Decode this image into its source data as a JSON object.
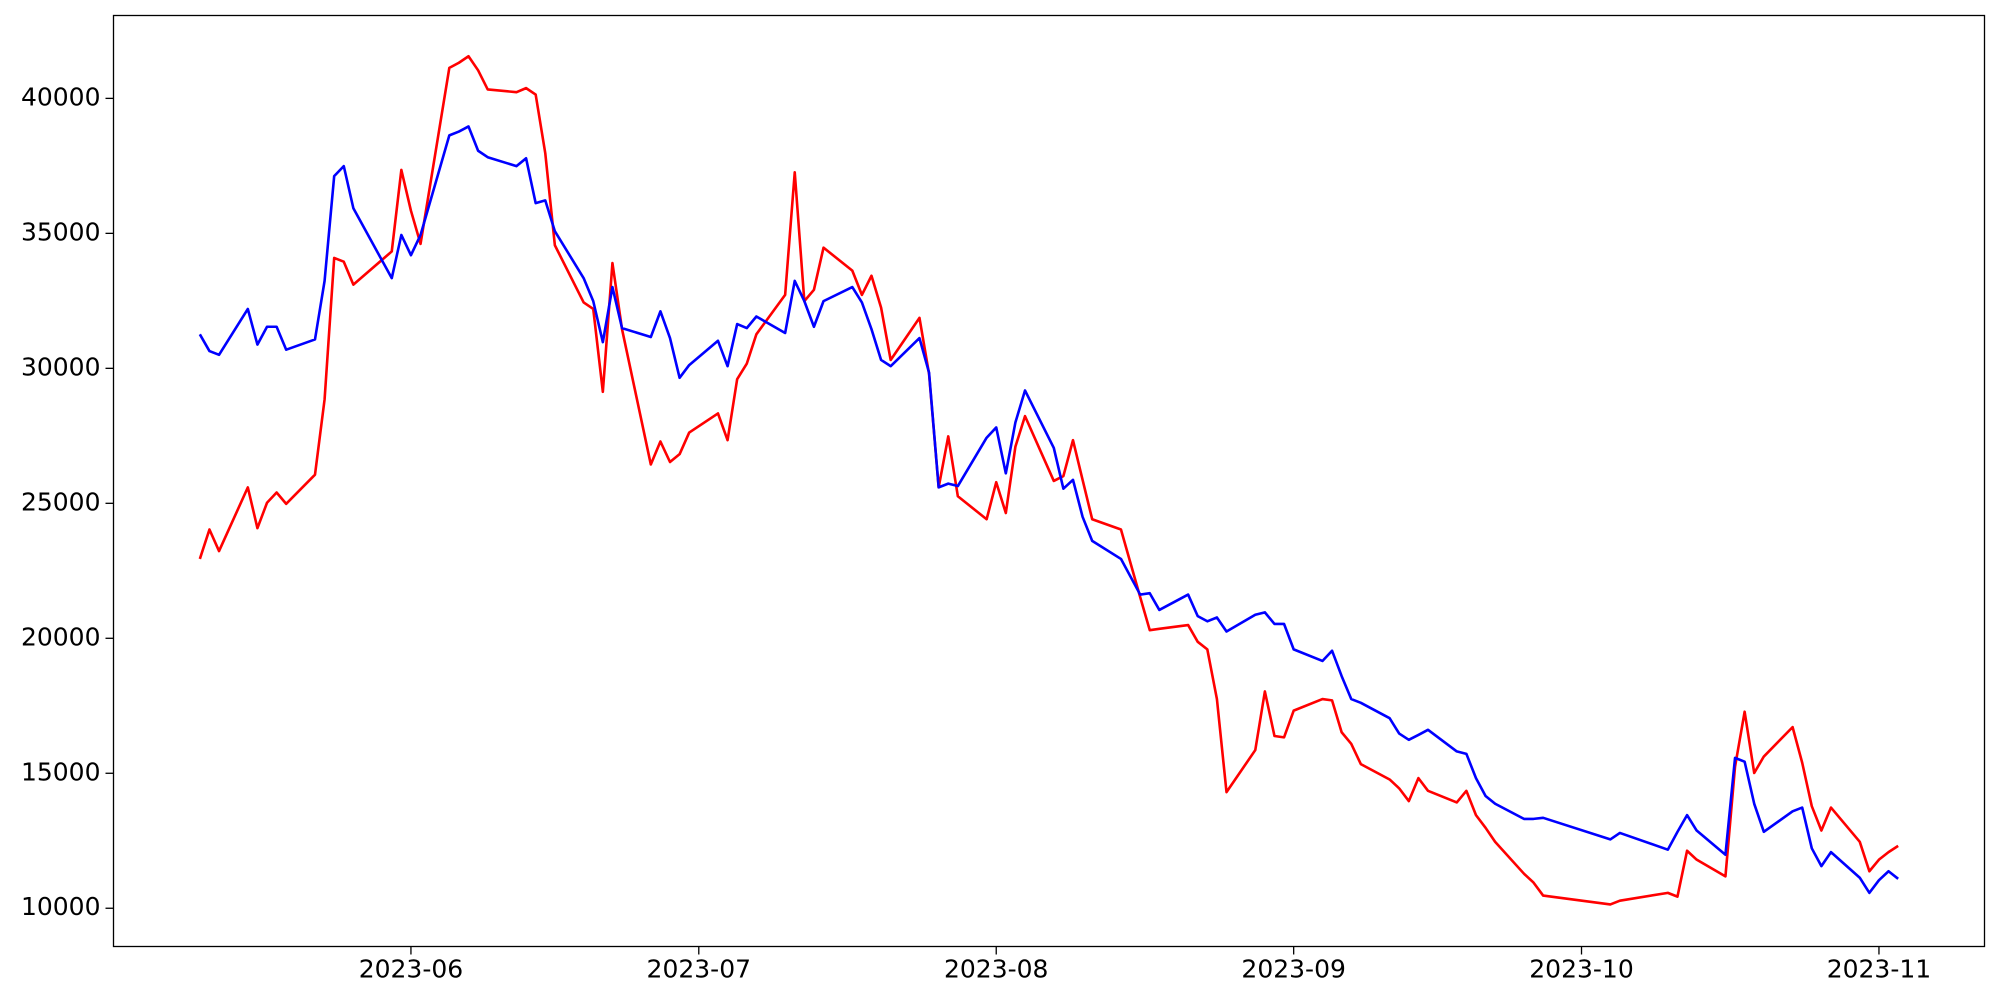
{
  "chart_data": {
    "type": "line",
    "x": [
      19487,
      19488,
      19489,
      19492,
      19493,
      19494,
      19495,
      19496,
      19499,
      19500,
      19501,
      19502,
      19503,
      19507,
      19508,
      19509,
      19510,
      19513,
      19514,
      19515,
      19516,
      19517,
      19520,
      19521,
      19522,
      19523,
      19524,
      19527,
      19528,
      19529,
      19530,
      19531,
      19534,
      19535,
      19536,
      19537,
      19538,
      19541,
      19542,
      19543,
      19544,
      19545,
      19548,
      19549,
      19550,
      19551,
      19552,
      19555,
      19556,
      19557,
      19558,
      19559,
      19562,
      19563,
      19564,
      19565,
      19566,
      19569,
      19570,
      19571,
      19572,
      19573,
      19576,
      19577,
      19578,
      19579,
      19580,
      19583,
      19585,
      19586,
      19587,
      19590,
      19591,
      19592,
      19593,
      19594,
      19597,
      19598,
      19599,
      19600,
      19601,
      19604,
      19605,
      19606,
      19607,
      19608,
      19611,
      19612,
      19613,
      19614,
      19615,
      19618,
      19619,
      19620,
      19621,
      19622,
      19625,
      19626,
      19627,
      19634,
      19635,
      19640,
      19641,
      19642,
      19643,
      19646,
      19647,
      19648,
      19649,
      19650,
      19653,
      19654,
      19655,
      19656,
      19657,
      19660,
      19661,
      19662,
      19663,
      19664
    ],
    "series": [
      {
        "color": "#ff0000",
        "values": [
          22940,
          24030,
          23230,
          25590,
          24080,
          25020,
          25400,
          24980,
          26060,
          28850,
          34090,
          33950,
          33100,
          34330,
          37350,
          35840,
          34610,
          41130,
          41320,
          41560,
          41040,
          40330,
          40230,
          40380,
          40140,
          37970,
          34560,
          32440,
          32200,
          29130,
          33900,
          31450,
          26440,
          27290,
          26530,
          26820,
          27620,
          28330,
          27340,
          29600,
          30170,
          31260,
          32720,
          37260,
          32490,
          32910,
          34470,
          33620,
          32720,
          33430,
          32250,
          30310,
          31870,
          29790,
          25590,
          27480,
          25260,
          24410,
          25780,
          24640,
          27100,
          28230,
          25830,
          26010,
          27340,
          25870,
          24410,
          24030,
          21530,
          20300,
          20350,
          20490,
          19870,
          19590,
          17750,
          14300,
          15860,
          18030,
          16380,
          16330,
          17320,
          17750,
          17700,
          16520,
          16090,
          15340,
          14770,
          14440,
          13970,
          14820,
          14350,
          13920,
          14350,
          13450,
          12980,
          12460,
          11280,
          10950,
          10470,
          10140,
          10280,
          10570,
          10430,
          12130,
          11800,
          11180,
          15240,
          17280,
          15010,
          15620,
          16710,
          15390,
          13780,
          12880,
          13730,
          12460,
          11370,
          11800,
          12080,
          12310
        ]
      },
      {
        "color": "#0000ff",
        "values": [
          31260,
          30640,
          30500,
          32200,
          30880,
          31540,
          31540,
          30690,
          31070,
          33240,
          37120,
          37490,
          35930,
          33340,
          34940,
          34190,
          34940,
          38630,
          38770,
          38960,
          38060,
          37820,
          37490,
          37780,
          36120,
          36220,
          35080,
          33340,
          32490,
          30970,
          33010,
          31490,
          31160,
          32110,
          31120,
          29650,
          30120,
          31020,
          30080,
          31640,
          31490,
          31920,
          31310,
          33240,
          32490,
          31540,
          32490,
          33010,
          32440,
          31450,
          30310,
          30080,
          31120,
          29840,
          25590,
          25730,
          25640,
          27430,
          27810,
          26110,
          28000,
          29180,
          27050,
          25540,
          25870,
          24500,
          23610,
          22940,
          21620,
          21670,
          21050,
          21620,
          20820,
          20630,
          20770,
          20250,
          20870,
          20960,
          20530,
          20530,
          19590,
          19160,
          19540,
          18600,
          17750,
          17610,
          17040,
          16470,
          16240,
          16420,
          16610,
          15810,
          15720,
          14820,
          14160,
          13870,
          13310,
          13310,
          13350,
          12550,
          12790,
          12170,
          12830,
          13450,
          12880,
          11980,
          15570,
          15430,
          13870,
          12830,
          13590,
          13730,
          12220,
          11560,
          12080,
          11130,
          10570,
          11040,
          11370,
          11090
        ]
      }
    ],
    "xlim": [
      19478,
      19673
    ],
    "xticks": [
      {
        "value": 19509,
        "label": "2023-06"
      },
      {
        "value": 19539,
        "label": "2023-07"
      },
      {
        "value": 19570,
        "label": "2023-08"
      },
      {
        "value": 19601,
        "label": "2023-09"
      },
      {
        "value": 19631,
        "label": "2023-10"
      },
      {
        "value": 19662,
        "label": "2023-11"
      }
    ],
    "ylim": [
      8583,
      43070
    ],
    "yticks": [
      10000,
      15000,
      20000,
      25000,
      30000,
      35000,
      40000
    ]
  }
}
